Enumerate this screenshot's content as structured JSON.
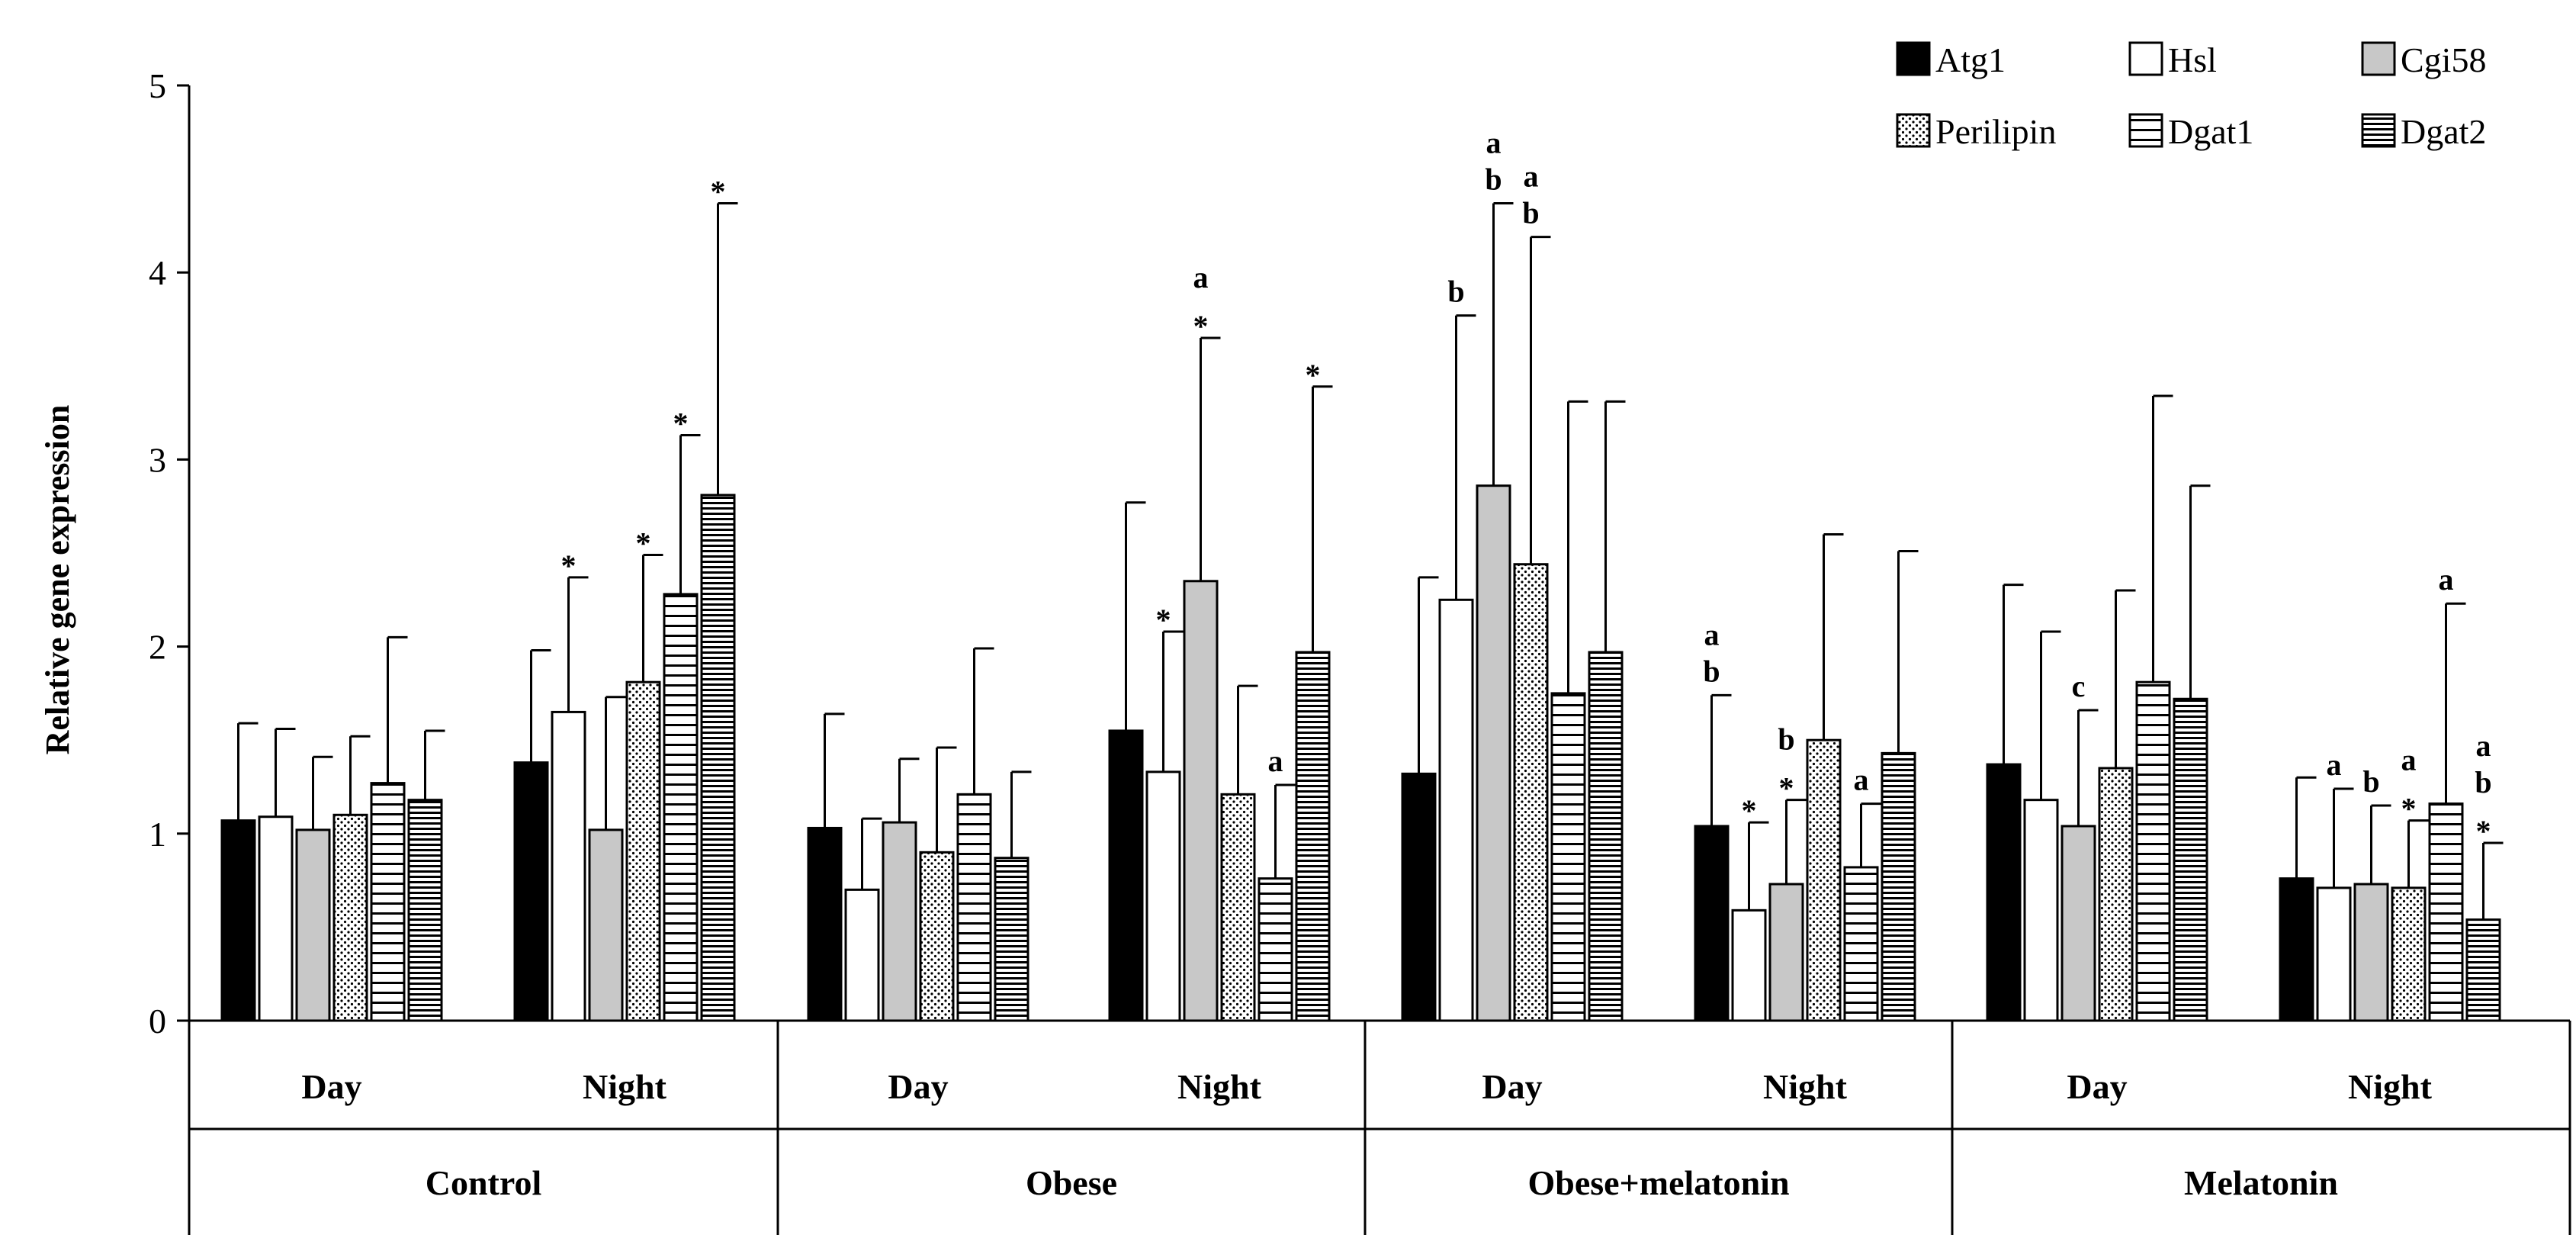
{
  "chart_data": {
    "type": "bar",
    "ylabel": "Relative gene expression",
    "ylim": [
      0,
      5
    ],
    "yticks": [
      "0",
      "1",
      "2",
      "3",
      "4",
      "5"
    ],
    "groups": [
      "Control",
      "Obese",
      "Obese+melatonin",
      "Melatonin"
    ],
    "times": [
      "Day",
      "Night"
    ],
    "legend_position": "top-right",
    "series": [
      {
        "name": "Atg1",
        "pattern": "solid-black",
        "values": [
          1.07,
          1.38,
          1.03,
          1.55,
          1.32,
          1.04,
          1.37,
          0.76
        ],
        "errors": [
          0.52,
          0.6,
          0.61,
          1.22,
          1.05,
          0.7,
          0.96,
          0.54
        ]
      },
      {
        "name": "Hsl",
        "pattern": "white",
        "values": [
          1.09,
          1.65,
          0.7,
          1.33,
          2.25,
          0.59,
          1.18,
          0.71
        ],
        "errors": [
          0.47,
          0.72,
          0.38,
          0.75,
          1.52,
          0.47,
          0.9,
          0.53
        ]
      },
      {
        "name": "Cgi58",
        "pattern": "gray",
        "values": [
          1.02,
          1.02,
          1.06,
          2.35,
          2.86,
          0.73,
          1.04,
          0.73
        ],
        "errors": [
          0.39,
          0.71,
          0.34,
          1.3,
          1.51,
          0.45,
          0.62,
          0.42
        ]
      },
      {
        "name": "Perilipin",
        "pattern": "dots",
        "values": [
          1.1,
          1.81,
          0.9,
          1.21,
          2.44,
          1.5,
          1.35,
          0.71
        ],
        "errors": [
          0.42,
          0.68,
          0.56,
          0.58,
          1.75,
          1.1,
          0.95,
          0.36
        ]
      },
      {
        "name": "Dgat1",
        "pattern": "horizontal-lines",
        "values": [
          1.27,
          2.28,
          1.21,
          0.76,
          1.75,
          0.82,
          1.81,
          1.16
        ],
        "errors": [
          0.78,
          0.85,
          0.78,
          0.5,
          1.56,
          0.34,
          1.53,
          1.07
        ]
      },
      {
        "name": "Dgat2",
        "pattern": "dense-horizontal-lines",
        "values": [
          1.18,
          2.81,
          0.87,
          1.97,
          1.97,
          1.43,
          1.72,
          0.54
        ],
        "errors": [
          0.37,
          1.56,
          0.46,
          1.42,
          1.34,
          1.08,
          1.14,
          0.41
        ]
      }
    ],
    "annotations": [
      {
        "cluster": 1,
        "series": 1,
        "labels": [
          "*"
        ]
      },
      {
        "cluster": 1,
        "series": 3,
        "labels": [
          "*"
        ]
      },
      {
        "cluster": 1,
        "series": 4,
        "labels": [
          "*"
        ]
      },
      {
        "cluster": 1,
        "series": 5,
        "labels": [
          "*"
        ]
      },
      {
        "cluster": 3,
        "series": 1,
        "labels": [
          "*"
        ]
      },
      {
        "cluster": 3,
        "series": 2,
        "labels": [
          "a",
          "*"
        ]
      },
      {
        "cluster": 3,
        "series": 4,
        "labels": [
          "a"
        ]
      },
      {
        "cluster": 3,
        "series": 5,
        "labels": [
          "*"
        ]
      },
      {
        "cluster": 4,
        "series": 1,
        "labels": [
          "b"
        ]
      },
      {
        "cluster": 4,
        "series": 2,
        "labels": [
          "a",
          "b"
        ]
      },
      {
        "cluster": 4,
        "series": 3,
        "labels": [
          "a",
          "b"
        ]
      },
      {
        "cluster": 5,
        "series": 0,
        "labels": [
          "a",
          "b"
        ]
      },
      {
        "cluster": 5,
        "series": 1,
        "labels": [
          "*"
        ]
      },
      {
        "cluster": 5,
        "series": 2,
        "labels": [
          "b",
          "*"
        ]
      },
      {
        "cluster": 5,
        "series": 4,
        "labels": [
          "a"
        ]
      },
      {
        "cluster": 6,
        "series": 2,
        "labels": [
          "c"
        ]
      },
      {
        "cluster": 7,
        "series": 1,
        "labels": [
          "a"
        ]
      },
      {
        "cluster": 7,
        "series": 2,
        "labels": [
          "b"
        ]
      },
      {
        "cluster": 7,
        "series": 3,
        "labels": [
          "a",
          "*"
        ]
      },
      {
        "cluster": 7,
        "series": 4,
        "labels": [
          "a"
        ]
      },
      {
        "cluster": 7,
        "series": 5,
        "labels": [
          "a",
          "b",
          "*"
        ]
      }
    ]
  }
}
